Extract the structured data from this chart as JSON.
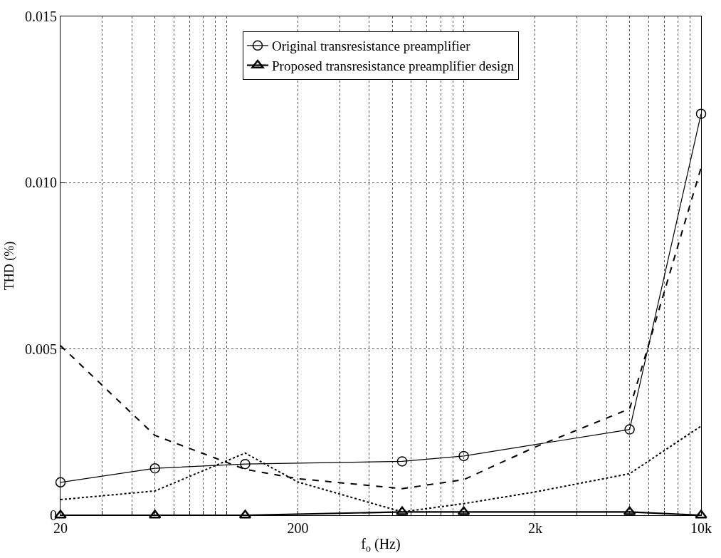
{
  "chart_data": {
    "type": "line",
    "xlabel": "f$_{o}$ (Hz)",
    "ylabel": "THD (%)",
    "log": "x",
    "grid": true,
    "legend": "top",
    "line_style": "solid",
    "xlim": [
      20,
      10000
    ],
    "ylim": [
      0,
      0.015
    ],
    "xticks": [
      20,
      {
        "value": 30,
        "label": null
      },
      {
        "value": 40,
        "label": null
      },
      {
        "value": 50,
        "label": null
      },
      {
        "value": 60,
        "label": null
      },
      {
        "value": 70,
        "label": null
      },
      {
        "value": 80,
        "label": null
      },
      {
        "value": 90,
        "label": null
      },
      {
        "value": 100,
        "label": null
      },
      200,
      {
        "value": 300,
        "label": null
      },
      {
        "value": 400,
        "label": null
      },
      {
        "value": 500,
        "label": null
      },
      {
        "value": 600,
        "label": null
      },
      {
        "value": 700,
        "label": null
      },
      {
        "value": 800,
        "label": null
      },
      {
        "value": 900,
        "label": null
      },
      {
        "value": 1000,
        "label": null
      },
      {
        "value": 2000,
        "label": "2k"
      },
      {
        "value": 3000,
        "label": null
      },
      {
        "value": 4000,
        "label": null
      },
      {
        "value": 5000,
        "label": null
      },
      {
        "value": 6000,
        "label": null
      },
      {
        "value": 7000,
        "label": null
      },
      {
        "value": 8000,
        "label": null
      },
      {
        "value": 9000,
        "label": null
      },
      {
        "value": 10000,
        "label": "10k"
      }
    ],
    "yticks": [
      0,
      0.005,
      {
        "value": 0.01,
        "label": "0.010"
      },
      0.015
    ],
    "series": [
      {
        "color": "#000000",
        "line_style": "dashed",
        "marker": "none",
        "x": [
          20,
          50,
          120,
          200,
          550,
          1000,
          2000,
          5000,
          10000
        ],
        "values": [
          0.0051,
          0.0024,
          0.00138,
          0.0011,
          0.0008,
          0.00107,
          0.00205,
          0.0032,
          0.01045
        ]
      },
      {
        "color": "#000000",
        "line_style": "dotted",
        "marker": "none",
        "x": [
          20,
          50,
          120,
          200,
          550,
          1000,
          2000,
          5000,
          10000
        ],
        "values": [
          0.00047,
          0.00073,
          0.00187,
          0.001,
          0.0001,
          0.00035,
          0.0007,
          0.00125,
          0.00268
        ]
      },
      {
        "name": "Original transresistance preamplifier",
        "color": "#000000",
        "marker": "circle",
        "x": [
          20,
          50,
          120,
          550,
          1000,
          5000,
          10000
        ],
        "values": [
          0.00099,
          0.00141,
          0.00154,
          0.00162,
          0.00178,
          0.00258,
          0.01207
        ]
      },
      {
        "name": "Proposed transresistance preamplifier design",
        "color": "#000000",
        "marker": "triangle",
        "x": [
          20,
          50,
          120,
          550,
          1000,
          5000,
          10000
        ],
        "values": [
          0,
          0,
          0,
          0.0001,
          0.0001,
          0.0001,
          0
        ]
      }
    ]
  }
}
